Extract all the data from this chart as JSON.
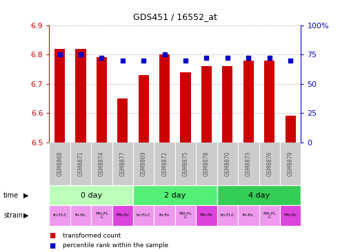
{
  "title": "GDS451 / 16552_at",
  "samples": [
    "GSM8868",
    "GSM8871",
    "GSM8874",
    "GSM8877",
    "GSM8869",
    "GSM8872",
    "GSM8875",
    "GSM8878",
    "GSM8870",
    "GSM8873",
    "GSM8876",
    "GSM8879"
  ],
  "transformed_counts": [
    6.82,
    6.82,
    6.79,
    6.65,
    6.73,
    6.8,
    6.74,
    6.76,
    6.76,
    6.78,
    6.78,
    6.59
  ],
  "percentile_ranks": [
    75,
    75,
    72,
    70,
    70,
    75,
    70,
    72,
    72,
    72,
    72,
    70
  ],
  "bar_bottom": 6.5,
  "ylim_left": [
    6.5,
    6.9
  ],
  "ylim_right": [
    0,
    100
  ],
  "yticks_left": [
    6.5,
    6.6,
    6.7,
    6.8,
    6.9
  ],
  "yticks_right": [
    0,
    25,
    50,
    75,
    100
  ],
  "ytick_labels_right": [
    "0",
    "25",
    "50",
    "75",
    "100%"
  ],
  "bar_color": "#cc0000",
  "dot_color": "#0000cc",
  "background_color": "#ffffff",
  "plot_bg_color": "#ffffff",
  "grid_color": "#888888",
  "time_groups": [
    {
      "label": "0 day",
      "start": 0,
      "end": 3,
      "color": "#bbffbb"
    },
    {
      "label": "2 day",
      "start": 4,
      "end": 7,
      "color": "#55ee77"
    },
    {
      "label": "4 day",
      "start": 8,
      "end": 11,
      "color": "#33cc55"
    }
  ],
  "strain_labels": [
    "tri-FLC",
    "fri-flc",
    "FRI-FL\nC",
    "FRI-flc",
    "tri-FLC",
    "fri-flc",
    "FRI-FL\nC",
    "FRI-flc",
    "tri-FLC",
    "fri-flc",
    "FRI-FL\nC",
    "FRI-flc"
  ],
  "strain_colors": [
    "#ee99ee",
    "#ee99ee",
    "#ee99ee",
    "#dd44dd",
    "#ee99ee",
    "#ee99ee",
    "#ee99ee",
    "#dd44dd",
    "#ee99ee",
    "#ee99ee",
    "#ee99ee",
    "#dd44dd"
  ],
  "tick_label_color": "#555555",
  "left_axis_color": "#cc0000",
  "right_axis_color": "#0000cc",
  "sample_bg_color": "#cccccc"
}
